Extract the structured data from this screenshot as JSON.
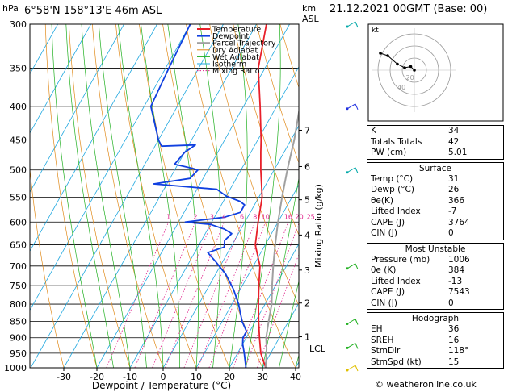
{
  "header": {
    "location": "6°58'N 158°13'E 46m ASL",
    "datetime": "21.12.2021 00GMT (Base: 00)",
    "pressure_unit": "hPa",
    "height_unit_km": "km",
    "height_unit_asl": "ASL"
  },
  "footer": {
    "credit": "© weatheronline.co.uk"
  },
  "chart_data": {
    "type": "line",
    "xlabel": "Dewpoint / Temperature (°C)",
    "ylabel": "",
    "right_ylabel": "Mixing Ratio (g/kg)",
    "x_ticks": [
      -30,
      -20,
      -10,
      0,
      10,
      20,
      30,
      40
    ],
    "pressure_levels": [
      300,
      350,
      400,
      450,
      500,
      550,
      600,
      650,
      700,
      750,
      800,
      850,
      900,
      950,
      1000
    ],
    "km_ticks": [
      {
        "label": "7",
        "p": 435
      },
      {
        "label": "6",
        "p": 494
      },
      {
        "label": "5",
        "p": 555
      },
      {
        "label": "4",
        "p": 628
      },
      {
        "label": "3",
        "p": 710
      },
      {
        "label": "2",
        "p": 797
      },
      {
        "label": "1",
        "p": 897
      },
      {
        "label": "LCL",
        "p": 935
      }
    ],
    "mixing_ratio_labels": [
      "1",
      "2",
      "3",
      "4",
      "6",
      "8",
      "10",
      "16",
      "20",
      "25"
    ],
    "mixing_ratio_values": [
      1,
      2,
      3,
      4,
      6,
      8,
      10,
      16,
      20,
      25
    ],
    "legend": [
      "Temperature",
      "Dewpoint",
      "Parcel Trajectory",
      "Dry Adiabat",
      "Wet Adiabat",
      "Isotherm",
      "Mixing Ratio"
    ],
    "series": [
      {
        "name": "Temperature",
        "color": "#e8202a",
        "points": [
          [
            -27,
            300
          ],
          [
            -22,
            350
          ],
          [
            -15,
            400
          ],
          [
            -9,
            450
          ],
          [
            -7,
            470
          ],
          [
            -4,
            500
          ],
          [
            1,
            550
          ],
          [
            4,
            600
          ],
          [
            7,
            650
          ],
          [
            12,
            700
          ],
          [
            15,
            750
          ],
          [
            18,
            800
          ],
          [
            21,
            850
          ],
          [
            24,
            900
          ],
          [
            27,
            950
          ],
          [
            31,
            1000
          ]
        ]
      },
      {
        "name": "Dewpoint",
        "color": "#1040e0",
        "points": [
          [
            -50,
            300
          ],
          [
            -49,
            350
          ],
          [
            -48,
            400
          ],
          [
            -40,
            450
          ],
          [
            -38,
            460
          ],
          [
            -28,
            458
          ],
          [
            -30,
            470
          ],
          [
            -31,
            490
          ],
          [
            -25,
            497
          ],
          [
            -23,
            500
          ],
          [
            -24,
            515
          ],
          [
            -34,
            525
          ],
          [
            -14,
            535
          ],
          [
            -10,
            548
          ],
          [
            -5,
            558
          ],
          [
            -3,
            565
          ],
          [
            -3,
            580
          ],
          [
            -7,
            590
          ],
          [
            -18,
            600
          ],
          [
            -10,
            605
          ],
          [
            -5,
            615
          ],
          [
            -2,
            625
          ],
          [
            -3,
            640
          ],
          [
            -2,
            655
          ],
          [
            -6,
            668
          ],
          [
            -2,
            690
          ],
          [
            3,
            720
          ],
          [
            8,
            760
          ],
          [
            12,
            800
          ],
          [
            16,
            850
          ],
          [
            19,
            880
          ],
          [
            19,
            900
          ],
          [
            20,
            920
          ],
          [
            22,
            950
          ],
          [
            25,
            1000
          ]
        ]
      },
      {
        "name": "Parcel Trajectory",
        "color": "#a0a0a0",
        "points": [
          [
            -13,
            300
          ],
          [
            -8,
            350
          ],
          [
            -3,
            400
          ],
          [
            1,
            450
          ],
          [
            4,
            500
          ],
          [
            7,
            550
          ],
          [
            10,
            600
          ],
          [
            13,
            650
          ],
          [
            16,
            700
          ],
          [
            19,
            750
          ],
          [
            22,
            800
          ],
          [
            24,
            850
          ],
          [
            26,
            900
          ],
          [
            28,
            935
          ],
          [
            31,
            1000
          ]
        ]
      }
    ],
    "wind_barbs": [
      {
        "p": 300,
        "color": "#00a8a8"
      },
      {
        "p": 400,
        "color": "#2030e0"
      },
      {
        "p": 500,
        "color": "#00a8a8"
      },
      {
        "p": 700,
        "color": "#20b020"
      },
      {
        "p": 850,
        "color": "#20b020"
      },
      {
        "p": 925,
        "color": "#20b020"
      },
      {
        "p": 1000,
        "color": "#e0c000"
      }
    ],
    "hodograph": {
      "unit_label": "kt",
      "ring_labels": [
        "20",
        "40"
      ],
      "points": [
        [
          0,
          0
        ],
        [
          -3,
          -3
        ],
        [
          -8,
          -2
        ],
        [
          -14,
          -5
        ],
        [
          -22,
          -12
        ],
        [
          -28,
          -14
        ]
      ]
    }
  },
  "stats": {
    "top": [
      {
        "label": "K",
        "value": "34"
      },
      {
        "label": "Totals Totals",
        "value": "42"
      },
      {
        "label": "PW (cm)",
        "value": "5.01"
      }
    ],
    "surface": {
      "title": "Surface",
      "rows": [
        {
          "label": "Temp (°C)",
          "value": "31"
        },
        {
          "label": "Dewp (°C)",
          "value": "26"
        },
        {
          "label": "θe(K)",
          "value": "366"
        },
        {
          "label": "Lifted Index",
          "value": "-7"
        },
        {
          "label": "CAPE (J)",
          "value": "3764"
        },
        {
          "label": "CIN (J)",
          "value": "0"
        }
      ]
    },
    "most_unstable": {
      "title": "Most Unstable",
      "rows": [
        {
          "label": "Pressure (mb)",
          "value": "1006"
        },
        {
          "label": "θe (K)",
          "value": "384"
        },
        {
          "label": "Lifted Index",
          "value": "-13"
        },
        {
          "label": "CAPE (J)",
          "value": "7543"
        },
        {
          "label": "CIN (J)",
          "value": "0"
        }
      ]
    },
    "hodograph": {
      "title": "Hodograph",
      "rows": [
        {
          "label": "EH",
          "value": "36"
        },
        {
          "label": "SREH",
          "value": "16"
        },
        {
          "label": "StmDir",
          "value": "118°"
        },
        {
          "label": "StmSpd (kt)",
          "value": "15"
        }
      ]
    }
  },
  "colors": {
    "dry_adiabat": "#e08a1a",
    "wet_adiabat": "#20b020",
    "isotherm": "#20a8e0",
    "mixing_ratio": "#e0208a"
  }
}
